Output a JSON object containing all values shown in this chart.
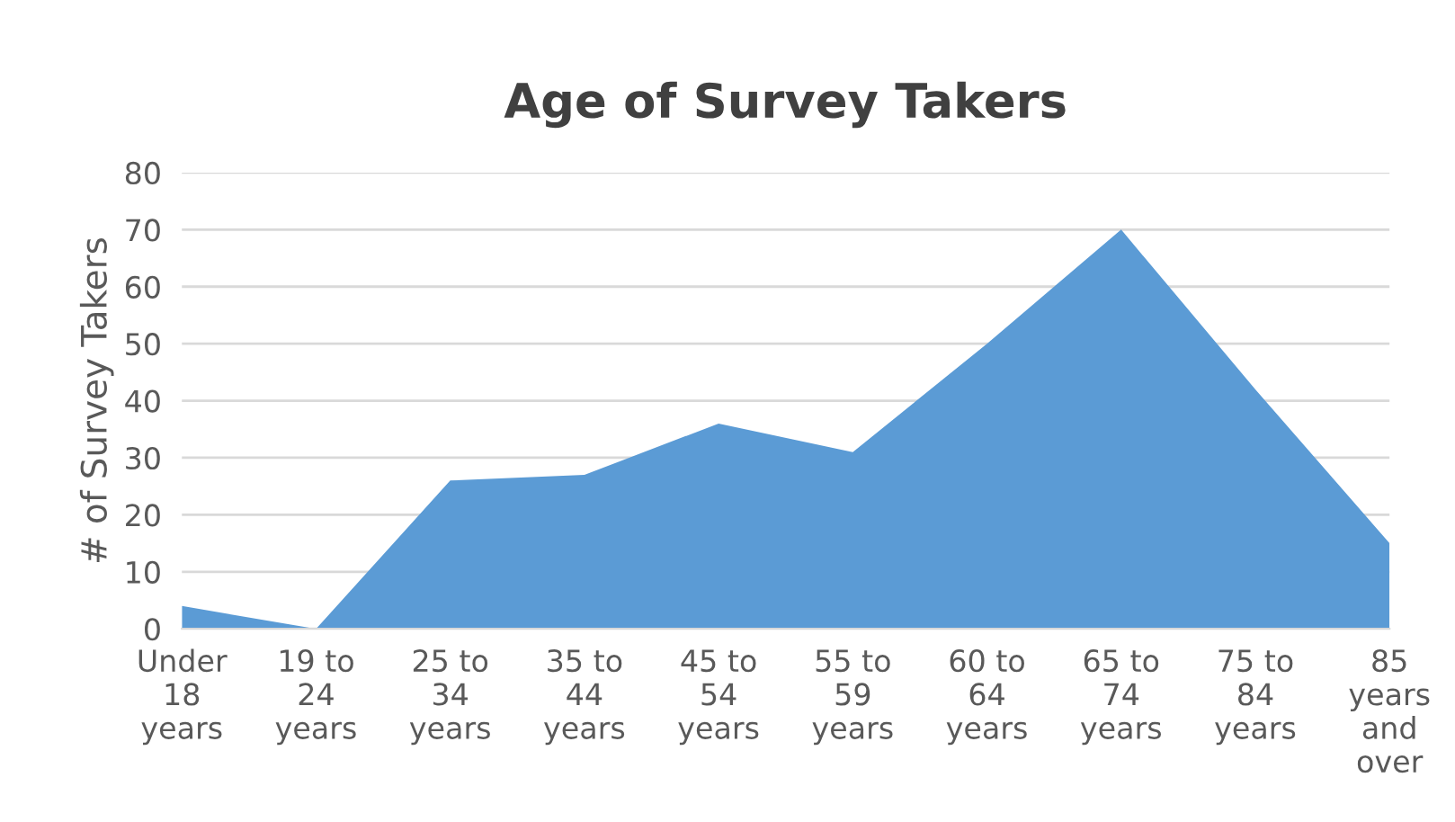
{
  "chart_data": {
    "type": "area",
    "title": "Age of Survey Takers",
    "ylabel": "# of Survey Takers",
    "categories": [
      "Under\n18\nyears",
      "19 to\n24\nyears",
      "25 to\n34\nyears",
      "35 to\n44\nyears",
      "45 to\n54\nyears",
      "55 to\n59\nyears",
      "60 to\n64\nyears",
      "65 to\n74\nyears",
      "75 to\n84\nyears",
      "85\nyears\nand\nover"
    ],
    "series": [
      {
        "color": "#5b9bd5",
        "values": [
          4,
          0,
          26,
          27,
          36,
          31,
          50,
          70,
          42,
          15
        ]
      }
    ],
    "ylim": [
      0,
      80
    ],
    "yticks": [
      0,
      10,
      20,
      30,
      40,
      50,
      60,
      70,
      80
    ],
    "grid": "y",
    "legend": false
  }
}
